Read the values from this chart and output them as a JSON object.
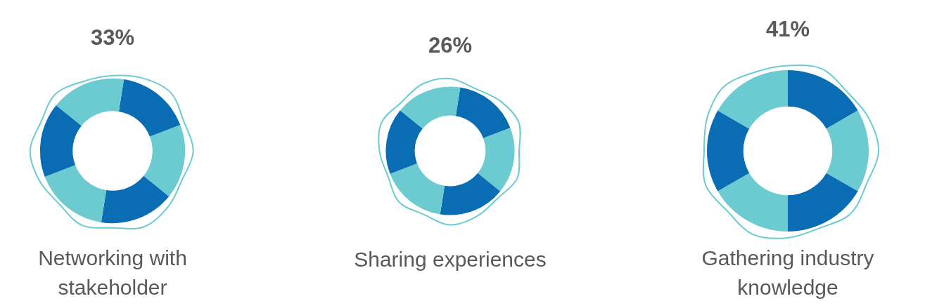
{
  "chart_data": {
    "type": "other",
    "categories": [
      "Networking with stakeholder",
      "Sharing experiences",
      "Gathering industry knowledge"
    ],
    "values": [
      33,
      26,
      41
    ],
    "value_labels": [
      "33%",
      "26%",
      "41%"
    ],
    "colors": [
      "#0a6db4",
      "#0a6db4",
      "#0a6db4"
    ]
  }
}
